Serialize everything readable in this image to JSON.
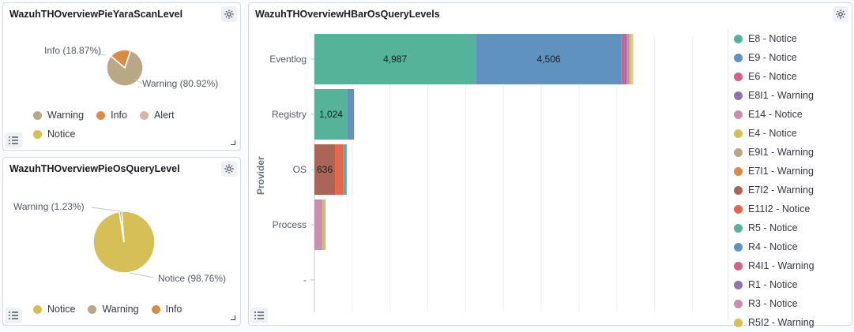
{
  "panels": {
    "yara": {
      "title": "WazuhTHOverviewPieYaraScanLevel",
      "labels": {
        "info": "Info (18.87%)",
        "warning": "Warning (80.92%)"
      },
      "legend": [
        {
          "label": "Warning",
          "color": "#b9a888"
        },
        {
          "label": "Info",
          "color": "#da8b45"
        },
        {
          "label": "Alert",
          "color": "#d6bf57"
        },
        {
          "label": "Notice",
          "color": "#d6bf57"
        }
      ]
    },
    "osquery_pie": {
      "title": "WazuhTHOverviewPieOsQueryLevel",
      "labels": {
        "warning": "Warning (1.23%)",
        "notice": "Notice (98.76%)"
      },
      "legend": [
        {
          "label": "Notice",
          "color": "#d6bf57"
        },
        {
          "label": "Warning",
          "color": "#b9a888"
        },
        {
          "label": "Info",
          "color": "#da8b45"
        }
      ]
    },
    "hbar": {
      "title": "WazuhTHOverviewHBarOsQueryLevels",
      "ylabel": "Provider",
      "legend": [
        {
          "label": "E8 - Notice",
          "color": "#54b399"
        },
        {
          "label": "E9 - Notice",
          "color": "#6092c0"
        },
        {
          "label": "E6 - Notice",
          "color": "#d36086"
        },
        {
          "label": "E8I1 - Warning",
          "color": "#9170b8"
        },
        {
          "label": "E14 - Notice",
          "color": "#ca8eae"
        },
        {
          "label": "E4 - Notice",
          "color": "#d6bf57"
        },
        {
          "label": "E9I1 - Warning",
          "color": "#b9a888"
        },
        {
          "label": "E7I1 - Warning",
          "color": "#da8b45"
        },
        {
          "label": "E7I2 - Warning",
          "color": "#aa6556"
        },
        {
          "label": "E11I2 - Notice",
          "color": "#e7664c"
        },
        {
          "label": "R5 - Notice",
          "color": "#54b399"
        },
        {
          "label": "R4 - Notice",
          "color": "#6092c0"
        },
        {
          "label": "R4I1 - Warning",
          "color": "#d36086"
        },
        {
          "label": "R1 - Notice",
          "color": "#9170b8"
        },
        {
          "label": "R3 - Notice",
          "color": "#ca8eae"
        },
        {
          "label": "R5I2 - Warning",
          "color": "#d6bf57"
        }
      ]
    }
  },
  "chart_data": [
    {
      "type": "pie",
      "categories": [
        "Warning",
        "Info",
        "Alert"
      ],
      "values": [
        80.92,
        18.87,
        0.21
      ],
      "colors": [
        "#b9a888",
        "#da8b45",
        "#d6bf57"
      ]
    },
    {
      "type": "pie",
      "categories": [
        "Notice",
        "Warning"
      ],
      "values": [
        98.76,
        1.23
      ],
      "colors": [
        "#d6bf57",
        "#b9a888"
      ]
    },
    {
      "type": "bar",
      "orientation": "horizontal",
      "stacked": true,
      "categories": [
        "Eventlog",
        "Registry",
        "OS",
        "Process",
        "-"
      ],
      "ylabel": "Provider",
      "xlim": [
        0,
        12500
      ],
      "grid": true,
      "legend_position": "right",
      "bars": [
        {
          "category": "Eventlog",
          "segments": [
            {
              "value": 4987,
              "color": "#54b399",
              "label": "4,987"
            },
            {
              "value": 4506,
              "color": "#6092c0",
              "label": "4,506"
            },
            {
              "value": 100,
              "color": "#d36086"
            },
            {
              "value": 60,
              "color": "#9170b8"
            },
            {
              "value": 80,
              "color": "#ca8eae"
            },
            {
              "value": 60,
              "color": "#d6bf57"
            },
            {
              "value": 60,
              "color": "#e0c890"
            }
          ]
        },
        {
          "category": "Registry",
          "segments": [
            {
              "value": 1024,
              "color": "#54b399",
              "label": "1,024"
            },
            {
              "value": 170,
              "color": "#6092c0"
            },
            {
              "value": 30,
              "color": "#9170b8"
            }
          ]
        },
        {
          "category": "OS",
          "segments": [
            {
              "value": 636,
              "color": "#aa6556",
              "label": "636"
            },
            {
              "value": 260,
              "color": "#e7664c"
            },
            {
              "value": 70,
              "color": "#54b399"
            },
            {
              "value": 30,
              "color": "#6092c0"
            }
          ]
        },
        {
          "category": "Process",
          "segments": [
            {
              "value": 250,
              "color": "#ca8eae"
            },
            {
              "value": 60,
              "color": "#d6bf57"
            },
            {
              "value": 30,
              "color": "#b9a888"
            }
          ]
        },
        {
          "category": "-",
          "segments": []
        }
      ]
    }
  ]
}
